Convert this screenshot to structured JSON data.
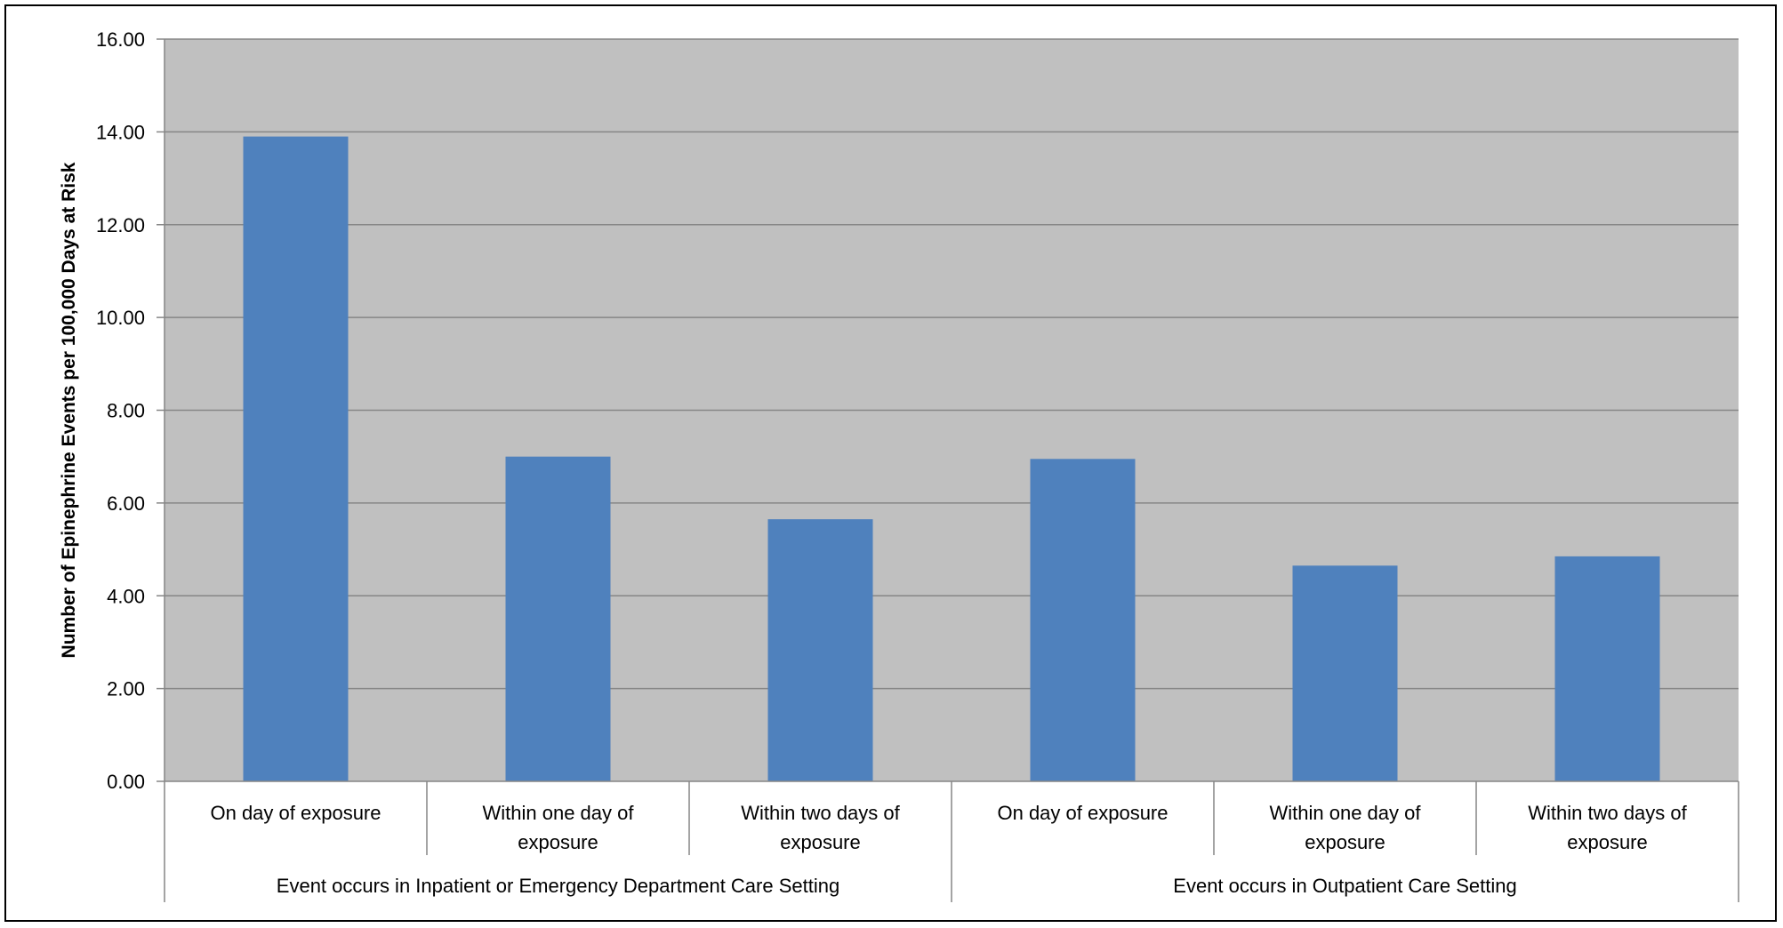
{
  "chart_data": {
    "type": "bar",
    "ylabel": "Number of Epinephrine Events per 100,000 Days at Risk",
    "ylim": [
      0,
      16
    ],
    "yticks": [
      "0.00",
      "2.00",
      "4.00",
      "6.00",
      "8.00",
      "10.00",
      "12.00",
      "14.00",
      "16.00"
    ],
    "grid": true,
    "groups": [
      {
        "label": "Event occurs in Inpatient or Emergency Department Care Setting",
        "categories": [
          [
            "On day of exposure"
          ],
          [
            "Within one day of",
            "exposure"
          ],
          [
            "Within two days of",
            "exposure"
          ]
        ],
        "values": [
          13.9,
          7.0,
          5.65
        ]
      },
      {
        "label": "Event occurs in Outpatient Care Setting",
        "categories": [
          [
            "On day of exposure"
          ],
          [
            "Within one day of",
            "exposure"
          ],
          [
            "Within two days of",
            "exposure"
          ]
        ],
        "values": [
          6.95,
          4.65,
          4.85
        ]
      }
    ],
    "colors": {
      "bar": "#4F81BD",
      "plot_background": "#C0C0C0",
      "gridline": "#868686",
      "axis": "#868686"
    }
  }
}
